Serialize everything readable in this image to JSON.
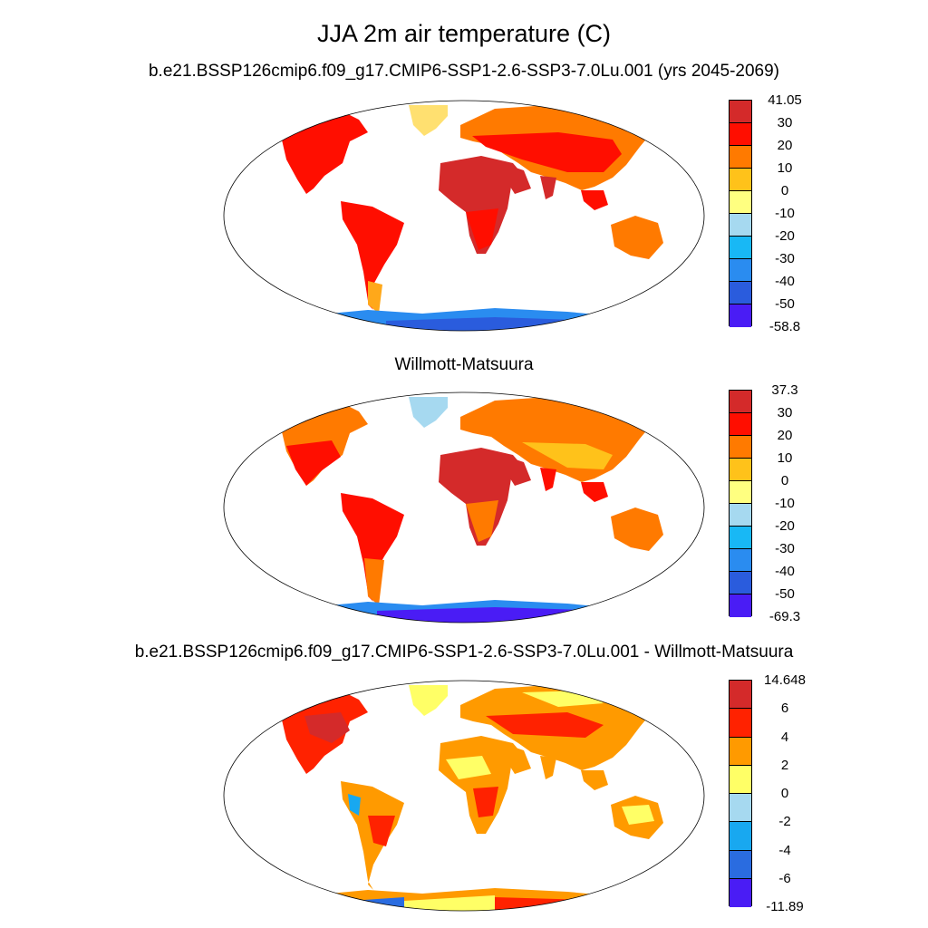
{
  "main_title": "JJA 2m air temperature (C)",
  "panels": [
    {
      "title": "b.e21.BSSP126cmip6.f09_g17.CMIP6-SSP1-2.6-SSP3-7.0Lu.001 (yrs 2045-2069)",
      "colorbar": {
        "labels": [
          "41.05",
          "30",
          "20",
          "10",
          "0",
          "-10",
          "-20",
          "-30",
          "-40",
          "-50",
          "-58.8"
        ],
        "colors": [
          "#d42a2a",
          "#ff0e00",
          "#ff7a00",
          "#ffc21a",
          "#ffff80",
          "#a6d9f0",
          "#18b8f5",
          "#2a8cf0",
          "#2a5cdd",
          "#4a1cf5"
        ]
      }
    },
    {
      "title": "Willmott-Matsuura",
      "colorbar": {
        "labels": [
          "37.3",
          "30",
          "20",
          "10",
          "0",
          "-10",
          "-20",
          "-30",
          "-40",
          "-50",
          "-69.3"
        ],
        "colors": [
          "#d42a2a",
          "#ff0e00",
          "#ff7a00",
          "#ffc21a",
          "#ffff80",
          "#a6d9f0",
          "#18b8f5",
          "#2a8cf0",
          "#2a5cdd",
          "#4a1cf5"
        ]
      }
    },
    {
      "title": "b.e21.BSSP126cmip6.f09_g17.CMIP6-SSP1-2.6-SSP3-7.0Lu.001 - Willmott-Matsuura",
      "colorbar": {
        "labels": [
          "14.648",
          "6",
          "4",
          "2",
          "0",
          "-2",
          "-4",
          "-6",
          "-11.89"
        ],
        "colors": [
          "#d42a2a",
          "#ff2200",
          "#ff9a00",
          "#ffff66",
          "#a6d9f0",
          "#18a8f0",
          "#2a6ce0",
          "#4a1cf5"
        ]
      }
    }
  ]
}
